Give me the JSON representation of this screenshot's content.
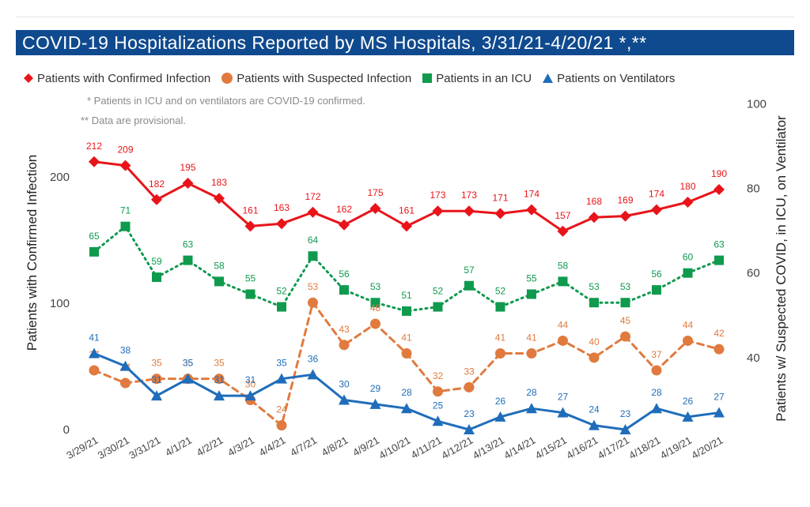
{
  "title": "COVID-19 Hospitalizations Reported by MS Hospitals, 3/31/21-4/20/21 *,**",
  "notes": [
    "* Patients in ICU and on ventilators are COVID-19 confirmed.",
    "** Data are provisional."
  ],
  "legend": [
    {
      "label": "Patients with Confirmed Infection",
      "color": "#e8141a",
      "icon": "diamond-marker"
    },
    {
      "label": "Patients with Suspected Infection",
      "color": "#e07a3e",
      "icon": "circle-marker"
    },
    {
      "label": "Patients in an ICU",
      "color": "#0f9a4e",
      "icon": "square-marker"
    },
    {
      "label": "Patients on Ventilators",
      "color": "#1f6dba",
      "icon": "triangle-marker"
    }
  ],
  "chart_data": {
    "type": "line",
    "categories": [
      "3/29/21",
      "3/30/21",
      "3/31/21",
      "4/1/21",
      "4/2/21",
      "4/3/21",
      "4/4/21",
      "4/7/21",
      "4/8/21",
      "4/9/21",
      "4/10/21",
      "4/11/21",
      "4/12/21",
      "4/13/21",
      "4/14/21",
      "4/15/21",
      "4/16/21",
      "4/17/21",
      "4/18/21",
      "4/19/21",
      "4/20/21"
    ],
    "ylabel": "Patients with Confirmed Infection",
    "y2label": "Patients w/ Suspected COVID, in ICU, on Ventilator",
    "ylim": [
      0,
      250
    ],
    "y2lim": [
      23,
      100
    ],
    "yticks": [
      0,
      100,
      200
    ],
    "y2ticks": [
      40,
      60,
      80,
      100
    ],
    "grid": false,
    "legend_position": "top",
    "series": [
      {
        "name": "Patients with Confirmed Infection",
        "axis": "left",
        "color": "#e8141a",
        "style": "solid",
        "marker": "diamond",
        "values": [
          212,
          209,
          182,
          195,
          183,
          161,
          163,
          172,
          162,
          175,
          161,
          173,
          173,
          171,
          174,
          157,
          168,
          169,
          174,
          180,
          190
        ]
      },
      {
        "name": "Patients in an ICU",
        "axis": "right",
        "color": "#0f9a4e",
        "style": "dotted",
        "marker": "square",
        "values": [
          65,
          71,
          59,
          63,
          58,
          55,
          52,
          64,
          56,
          53,
          51,
          52,
          57,
          52,
          55,
          58,
          53,
          53,
          56,
          60,
          63
        ]
      },
      {
        "name": "Patients with Suspected Infection",
        "axis": "right",
        "color": "#e07a3e",
        "style": "dashed",
        "marker": "circle",
        "values": [
          37,
          34,
          35,
          35,
          35,
          30,
          24,
          53,
          43,
          48,
          41,
          32,
          33,
          41,
          41,
          44,
          40,
          45,
          37,
          44,
          42
        ]
      },
      {
        "name": "Patients on Ventilators",
        "axis": "right",
        "color": "#1f6dba",
        "style": "solid",
        "marker": "triangle",
        "values": [
          41,
          38,
          31,
          35,
          31,
          31,
          35,
          36,
          30,
          29,
          28,
          25,
          23,
          26,
          28,
          27,
          24,
          23,
          28,
          26,
          27
        ]
      }
    ]
  }
}
